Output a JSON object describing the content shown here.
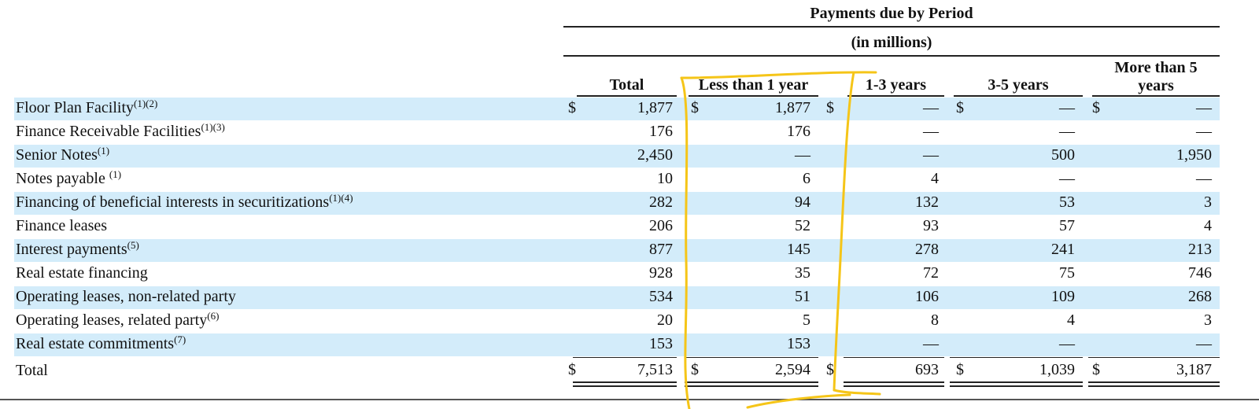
{
  "header": {
    "group_title": "Payments due by Period",
    "units": "(in millions)"
  },
  "columns": [
    "Total",
    "Less than 1 year",
    "1-3 years",
    "3-5 years",
    "More than 5 years"
  ],
  "column_header_lines": {
    "more_than_5_line1": "More than 5",
    "more_than_5_line2": "years"
  },
  "currency_symbol": "$",
  "rows": [
    {
      "label": "Floor Plan Facility",
      "note": "(1)(2)",
      "values": [
        "1,877",
        "1,877",
        "—",
        "—",
        "—"
      ],
      "dollar": true
    },
    {
      "label": "Finance Receivable Facilities",
      "note": "(1)(3)",
      "values": [
        "176",
        "176",
        "—",
        "—",
        "—"
      ],
      "dollar": false
    },
    {
      "label": "Senior Notes",
      "note": "(1)",
      "values": [
        "2,450",
        "—",
        "—",
        "500",
        "1,950"
      ],
      "dollar": false
    },
    {
      "label": "Notes payable ",
      "note": "(1)",
      "values": [
        "10",
        "6",
        "4",
        "—",
        "—"
      ],
      "dollar": false
    },
    {
      "label": "Financing of beneficial interests in securitizations",
      "note": "(1)(4)",
      "values": [
        "282",
        "94",
        "132",
        "53",
        "3"
      ],
      "dollar": false
    },
    {
      "label": "Finance leases",
      "note": "",
      "values": [
        "206",
        "52",
        "93",
        "57",
        "4"
      ],
      "dollar": false
    },
    {
      "label": "Interest payments",
      "note": "(5)",
      "values": [
        "877",
        "145",
        "278",
        "241",
        "213"
      ],
      "dollar": false
    },
    {
      "label": "Real estate financing",
      "note": "",
      "values": [
        "928",
        "35",
        "72",
        "75",
        "746"
      ],
      "dollar": false
    },
    {
      "label": "Operating leases, non-related party",
      "note": "",
      "values": [
        "534",
        "51",
        "106",
        "109",
        "268"
      ],
      "dollar": false
    },
    {
      "label": "Operating leases, related party",
      "note": "(6)",
      "values": [
        "20",
        "5",
        "8",
        "4",
        "3"
      ],
      "dollar": false
    },
    {
      "label": "Real estate commitments",
      "note": "(7)",
      "values": [
        "153",
        "153",
        "—",
        "—",
        "—"
      ],
      "dollar": false
    }
  ],
  "total_row": {
    "label": "Total",
    "values": [
      "7,513",
      "2,594",
      "693",
      "1,039",
      "3,187"
    ]
  },
  "colors": {
    "band": "#d3ecfa",
    "highlight_pen": "#f5c518"
  }
}
